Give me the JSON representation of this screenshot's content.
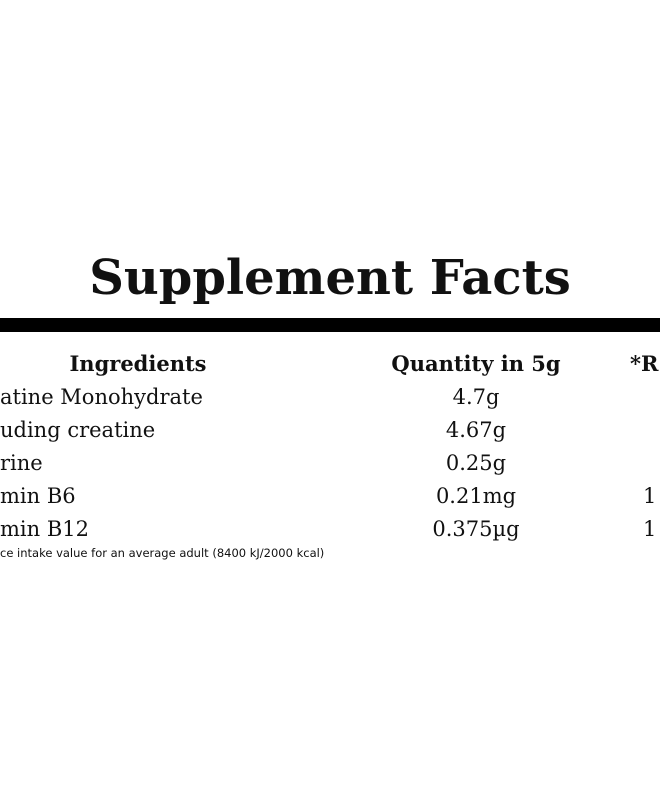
{
  "title": "Supplement Facts",
  "table": {
    "headers": [
      "Ingredients",
      "Quantity in 5g",
      "*R"
    ],
    "rows": [
      [
        "atine Monohydrate",
        "4.7g"
      ],
      [
        "uding creatine",
        "4.67g"
      ],
      [
        "rine",
        "0.25g"
      ],
      [
        "min B6",
        "0.21mg",
        "1"
      ],
      [
        "min B12",
        "0.375µg",
        "1"
      ]
    ]
  },
  "footnote": "ce intake value for an average adult (8400 kJ/2000 kcal)"
}
